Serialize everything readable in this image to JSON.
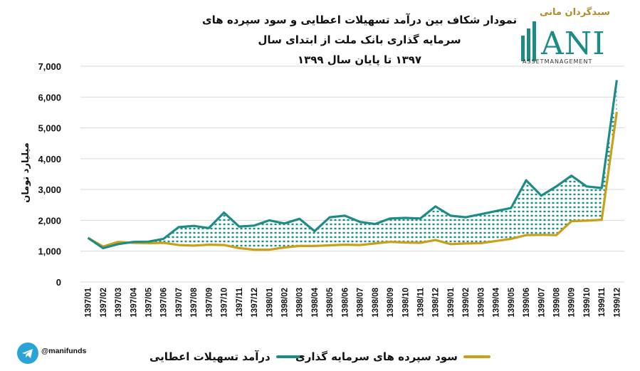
{
  "title_line1": "نمودار شکاف بین درآمد تسهیلات اعطایی و سود سپرده های سرمایه گذاری بانک ملت از ابتدای سال",
  "title_line2": "۱۳۹۷ تا پایان سال ۱۳۹۹",
  "logo": {
    "brand": "سبدگردان مانی",
    "big": "ANI",
    "sub": "ASSETMANAGEMENT"
  },
  "telegram_handle": "@manifunds",
  "colors": {
    "loans": "#1e8c86",
    "deposits": "#c9a019",
    "hatch": "#1e8c86",
    "grid": "#d9d9d9",
    "telegram": "#2aa3d9"
  },
  "chart_data": {
    "type": "line",
    "ylabel": "میلیارد تومان",
    "ylim": [
      0,
      7000
    ],
    "yticks": [
      0,
      1000,
      2000,
      3000,
      4000,
      5000,
      6000,
      7000
    ],
    "ytick_labels": [
      "0",
      "1,000",
      "2,000",
      "3,000",
      "4,000",
      "5,000",
      "6,000",
      "7,000"
    ],
    "grid": "horizontal",
    "legend_position": "bottom",
    "categories": [
      "1397/01",
      "1397/02",
      "1397/03",
      "1397/04",
      "1397/05",
      "1397/06",
      "1397/07",
      "1397/08",
      "1397/09",
      "1397/10",
      "1397/11",
      "1397/12",
      "1398/01",
      "1398/02",
      "1398/03",
      "1398/04",
      "1398/05",
      "1398/06",
      "1398/07",
      "1398/08",
      "1398/09",
      "1398/10",
      "1398/11",
      "1398/12",
      "1399/01",
      "1399/02",
      "1399/03",
      "1399/04",
      "1399/05",
      "1399/06",
      "1399/07",
      "1399/08",
      "1399/09",
      "1399/10",
      "1399/11",
      "1399/12"
    ],
    "series": [
      {
        "name": "درآمد تسهیلات اعطایی",
        "values": [
          1430,
          1100,
          1230,
          1300,
          1310,
          1400,
          1780,
          1820,
          1750,
          2250,
          1800,
          1830,
          2000,
          1900,
          2050,
          1650,
          2100,
          2150,
          1950,
          1880,
          2060,
          2080,
          2060,
          2450,
          2150,
          2100,
          2200,
          2300,
          2400,
          3300,
          2800,
          3100,
          3450,
          3100,
          3050,
          6550
        ]
      },
      {
        "name": "سود سپرده های سرمایه گذاری",
        "values": [
          1430,
          1150,
          1300,
          1270,
          1260,
          1270,
          1200,
          1180,
          1210,
          1200,
          1100,
          1050,
          1050,
          1120,
          1170,
          1170,
          1190,
          1210,
          1200,
          1250,
          1300,
          1280,
          1270,
          1360,
          1230,
          1250,
          1260,
          1330,
          1400,
          1520,
          1530,
          1520,
          1970,
          1990,
          2020,
          5520
        ]
      }
    ]
  }
}
